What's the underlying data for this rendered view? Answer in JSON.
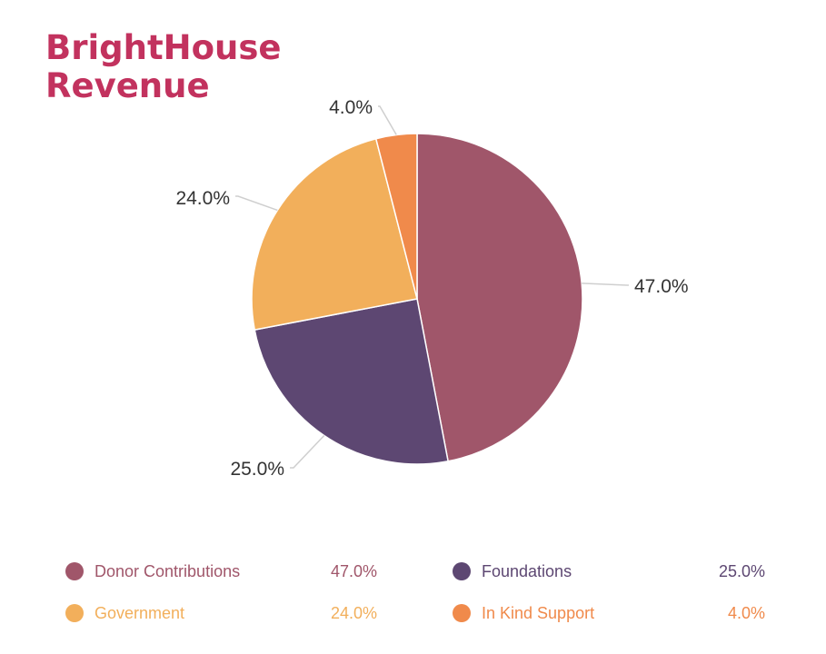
{
  "chart_data": {
    "type": "pie",
    "title_lines": [
      "BrightHouse",
      "Revenue"
    ],
    "slices": [
      {
        "name": "Donor Contributions",
        "value": 47.0,
        "label": "47.0%",
        "color": "#a0566a"
      },
      {
        "name": "Foundations",
        "value": 25.0,
        "label": "25.0%",
        "color": "#5d4772"
      },
      {
        "name": "Government",
        "value": 24.0,
        "label": "24.0%",
        "color": "#f2af5b"
      },
      {
        "name": "In Kind Support",
        "value": 4.0,
        "label": "4.0%",
        "color": "#f08a4b"
      }
    ],
    "legend_placement": "bottom",
    "title_color": "#c2325e",
    "leader_line_color": "#cfcfcf"
  }
}
